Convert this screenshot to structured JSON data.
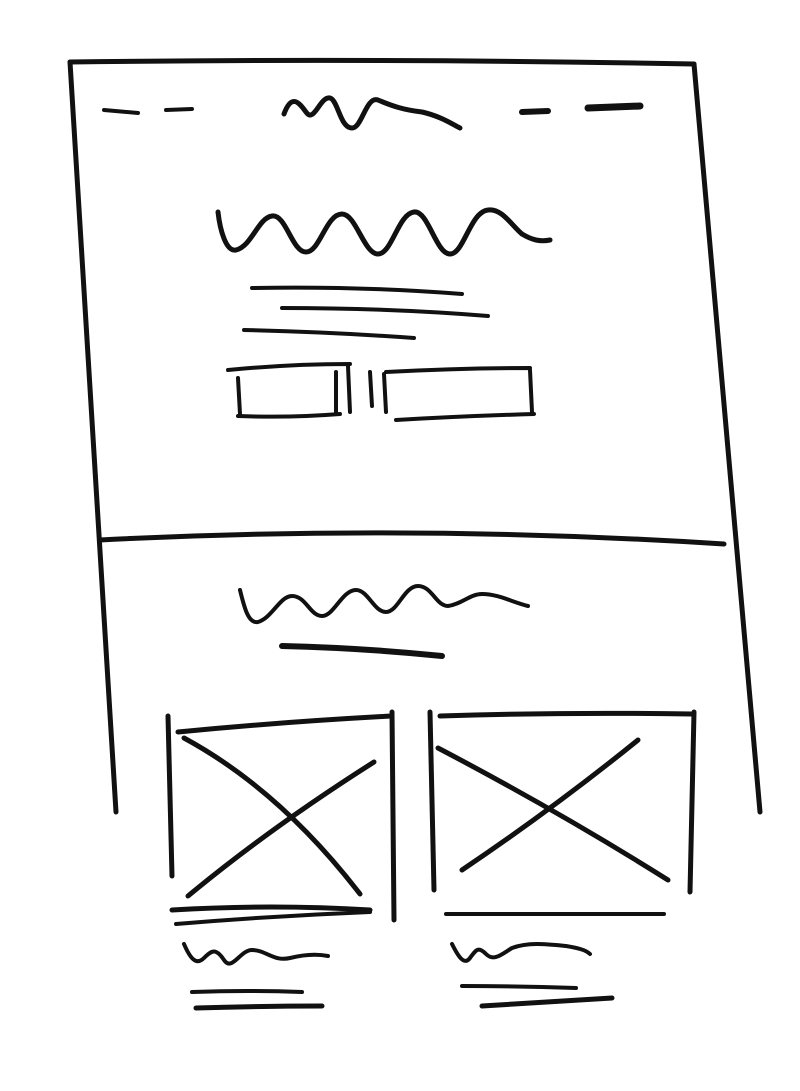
{
  "wireframe": {
    "style": "hand-drawn",
    "ink_color": "#111111",
    "background_color": "#ffffff",
    "hero": {
      "nav": {
        "left_links": 2,
        "center_logo": "scribble",
        "right_links": 2
      },
      "headline": "scribble",
      "text_lines": 3,
      "buttons": 2
    },
    "section": {
      "heading": "scribble",
      "subheading_lines": 1,
      "cards": [
        {
          "image": "placeholder-x",
          "title": "scribble",
          "text_lines": 2
        },
        {
          "image": "placeholder-x",
          "title": "scribble",
          "text_lines": 2
        }
      ]
    }
  }
}
